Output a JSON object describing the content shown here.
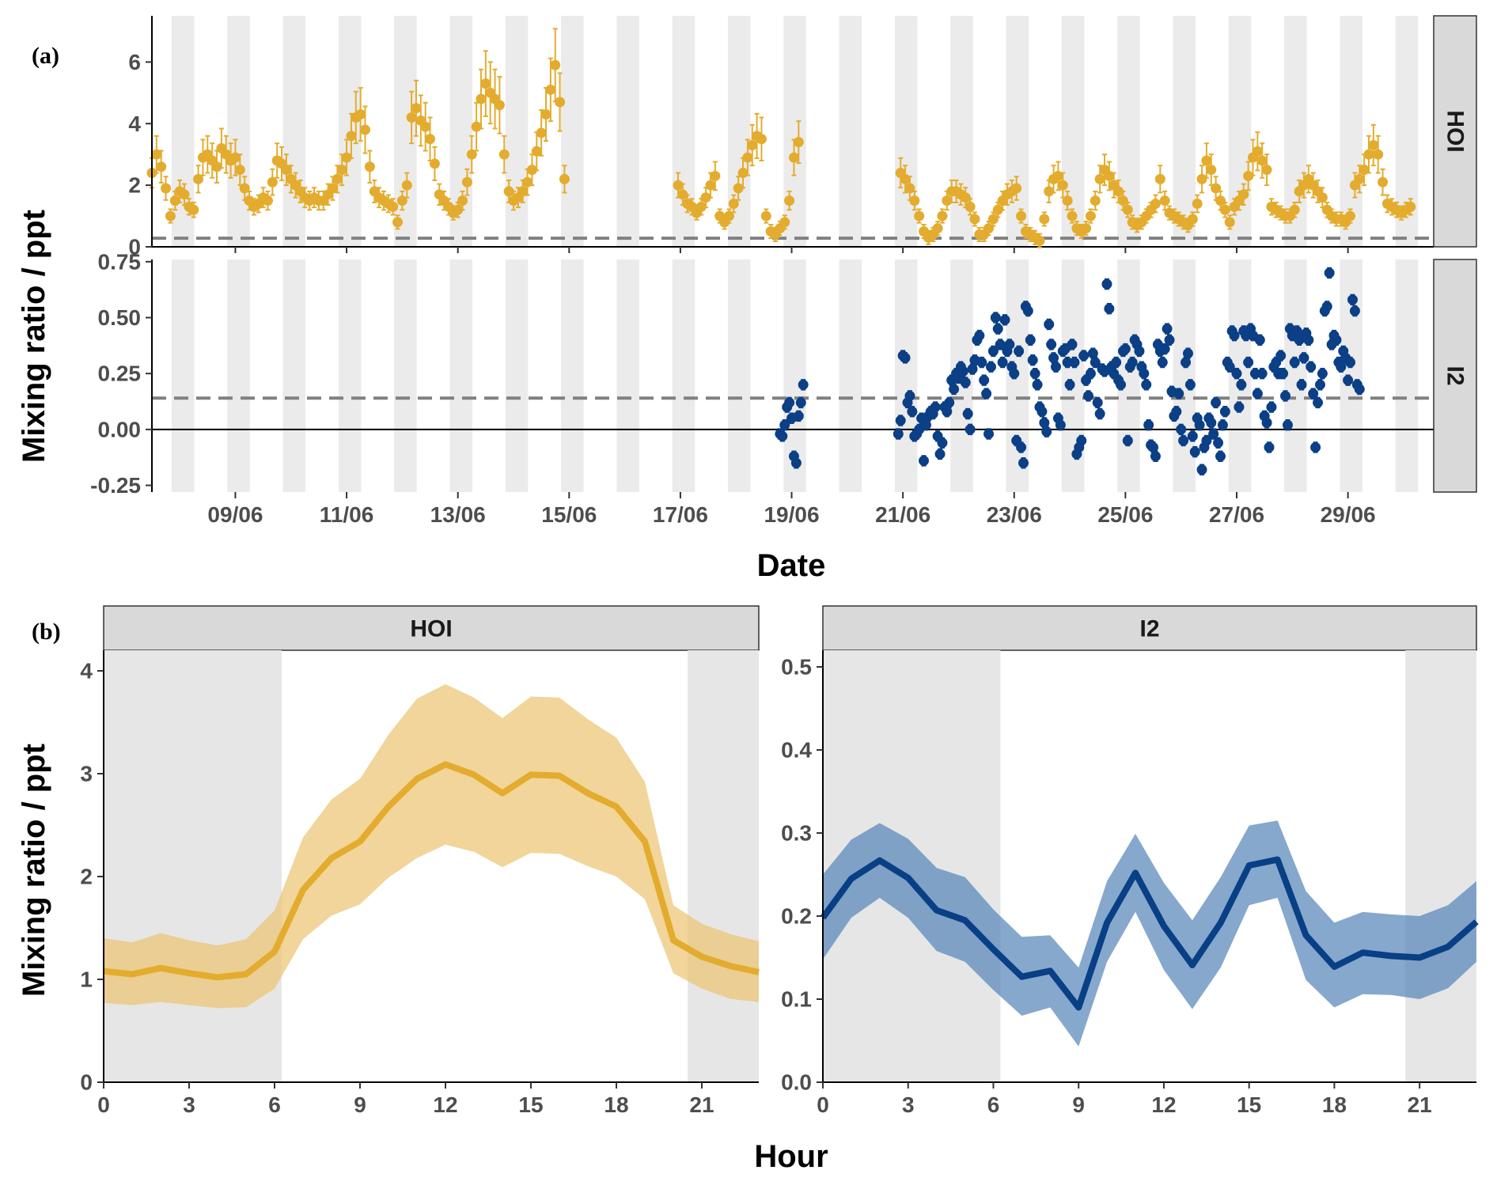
{
  "chart_data": [
    {
      "id": "a",
      "panel_label": "(a)",
      "type": "scatter",
      "xlabel": "Date",
      "ylabel": "Mixing ratio / ppt",
      "x_tick_labels": [
        "09/06",
        "11/06",
        "13/06",
        "15/06",
        "17/06",
        "19/06",
        "21/06",
        "23/06",
        "25/06",
        "27/06",
        "29/06"
      ],
      "x_range": [
        "2023-06-07T12:00",
        "2023-06-30T13:00"
      ],
      "year_assumed": "",
      "night_shading": "light grey vertical bands mark night periods (~20:30 to 06:15 local)",
      "facets": [
        {
          "strip_label": "HOI",
          "color": "#e3ac2e",
          "ylim": [
            0,
            7.5
          ],
          "y_ticks": [
            0,
            2,
            4,
            6
          ],
          "detection_limit": 0.28,
          "zero_line": true,
          "error_bar_relative": 0.2,
          "error_bar_min": 0.22,
          "segments": [
            {
              "start": "2023-06-07T12:00",
              "step_hours": 2,
              "values": [
                2.4,
                3.0,
                2.6,
                1.9,
                1.0,
                1.5,
                1.8,
                1.7,
                1.3,
                1.2,
                2.2,
                2.9,
                3.0,
                2.8,
                2.6,
                3.2,
                3.0,
                2.8,
                2.9,
                2.5,
                1.9,
                1.5,
                1.3,
                1.4,
                1.6,
                1.5,
                2.1,
                2.8,
                2.7,
                2.5,
                2.2,
                2.0,
                1.8,
                1.6,
                1.5,
                1.6,
                1.5,
                1.5,
                1.7,
                1.9,
                2.2,
                2.5,
                2.9,
                3.6,
                4.2,
                4.3,
                3.8,
                2.6,
                1.8,
                1.6,
                1.5,
                1.4,
                1.3,
                0.8,
                1.5,
                2.0,
                4.2,
                4.5,
                4.1,
                3.9,
                3.5,
                2.7,
                1.7,
                1.5,
                1.3,
                1.1,
                1.2,
                1.5,
                2.1,
                3.0,
                3.9,
                4.8,
                5.3,
                5.0,
                4.8,
                4.6,
                3.0,
                1.8,
                1.5,
                1.6,
                1.8,
                2.1,
                2.5,
                3.1,
                3.7,
                4.3,
                5.1,
                5.9,
                4.7,
                2.2
              ]
            },
            {
              "start": "2023-06-16T23:00",
              "step_hours": 2,
              "values": [
                2.0,
                1.7,
                1.4,
                1.3,
                1.1,
                1.3,
                1.6,
                2.0,
                2.3,
                1.0,
                0.8,
                1.0,
                1.4,
                1.9,
                2.4,
                2.9,
                3.3,
                3.6,
                3.5,
                1.0,
                0.5,
                0.4,
                0.6,
                0.8,
                1.5,
                2.9,
                3.4
              ]
            },
            {
              "start": "2023-06-20T23:00",
              "step_hours": 2,
              "values": [
                2.4,
                2.2,
                1.9,
                1.5,
                1.0,
                0.5,
                0.3,
                0.4,
                0.6,
                1.0,
                1.5,
                1.8,
                1.8,
                1.7,
                1.6,
                1.3,
                0.9,
                0.4,
                0.4,
                0.6,
                0.9,
                1.2,
                1.5,
                1.7,
                1.8,
                1.9,
                1.0,
                0.5,
                0.4,
                0.3,
                0.2,
                0.9,
                1.8,
                2.2,
                2.3,
                2.0,
                1.5,
                1.0,
                0.6,
                0.5,
                0.6,
                1.0,
                1.5,
                2.2,
                2.5,
                2.3,
                2.0,
                1.8,
                1.5,
                1.2,
                0.8,
                0.7,
                0.8,
                1.0,
                1.2,
                1.4,
                2.2,
                1.5,
                1.1,
                1.0,
                0.9,
                0.8,
                0.7,
                0.9,
                1.4,
                2.2,
                2.8,
                2.5,
                1.9,
                1.5,
                1.2,
                0.8,
                1.3,
                1.5,
                1.7,
                2.3,
                2.9,
                3.1,
                2.8,
                2.5,
                1.3,
                1.2,
                1.1,
                1.0,
                1.0,
                1.2,
                1.8,
                2.0,
                2.2,
                2.0,
                1.8,
                1.6,
                1.2,
                1.0,
                0.9,
                0.9,
                0.8,
                1.0,
                2.0,
                2.2,
                2.5,
                3.0,
                3.3,
                3.0,
                2.1,
                1.4,
                1.3,
                1.2,
                1.1,
                1.2,
                1.3
              ]
            }
          ]
        },
        {
          "strip_label": "I2",
          "color": "#0b3f86",
          "ylim": [
            -0.28,
            0.76
          ],
          "y_ticks": [
            -0.25,
            0,
            0.25,
            0.5,
            0.75
          ],
          "y_tick_labels": [
            "-0.25",
            "0.00",
            "0.25",
            "0.50",
            "0.75"
          ],
          "detection_limit": 0.14,
          "zero_line": true,
          "error_bar_half": 0.022,
          "segments": [
            {
              "start": "2023-06-18T19:00",
              "step_hours": 1,
              "values": [
                -0.02,
                -0.03,
                0.02,
                0.1,
                0.12,
                0.05,
                -0.12,
                -0.15,
                0.06,
                0.12,
                0.2
              ]
            },
            {
              "start": "2023-06-20T22:00",
              "step_hours": 1,
              "values": [
                -0.02,
                0.04,
                0.33,
                0.32,
                0.12,
                0.15,
                0.08,
                -0.03,
                -0.02,
                0.0,
                0.05,
                -0.14,
                0.02,
                0.06,
                0.08,
                0.07,
                0.1,
                -0.03,
                -0.11,
                -0.06,
                0.1,
                0.08,
                0.12,
                0.22,
                0.18,
                0.25,
                0.23,
                0.28,
                0.26,
                0.21,
                0.07,
                0.0,
                0.27,
                0.31,
                0.4,
                0.42,
                0.3,
                0.22,
                0.16,
                -0.02,
                0.28,
                0.35,
                0.5,
                0.45,
                0.38,
                0.3,
                0.49,
                0.35,
                0.38,
                0.28,
                0.25,
                -0.05,
                0.35,
                -0.08,
                -0.15,
                0.55,
                0.53,
                0.4,
                0.31,
                0.25,
                0.2,
                0.1,
                0.08,
                0.03,
                -0.01,
                0.47,
                0.38,
                0.32,
                0.28,
                0.05,
                0.02,
                0.35,
                0.36,
                0.3,
                0.2,
                0.38,
                0.3,
                -0.11,
                -0.08,
                -0.05,
                0.33,
                0.22,
                0.15,
                0.25,
                0.34,
                0.3,
                0.12,
                0.07,
                0.27,
                0.26,
                0.65,
                0.54,
                0.28,
                0.25,
                0.3,
                0.22,
                0.2,
                0.35,
                0.36,
                -0.05,
                0.28,
                0.3,
                0.4,
                0.38,
                0.35,
                0.28,
                0.25,
                0.2,
                0.02,
                -0.07,
                -0.08,
                -0.12,
                0.38,
                0.35,
                0.3,
                0.36,
                0.45,
                0.4,
                0.17,
                0.06,
                0.08,
                0.16,
                0.0,
                -0.05,
                0.3,
                0.34,
                0.2,
                -0.03,
                -0.1,
                0.05,
                0.02,
                -0.18,
                -0.08,
                -0.05,
                0.05,
                0.03,
                -0.02,
                0.12,
                -0.06,
                -0.12,
                0.02,
                0.08,
                0.3,
                0.28,
                0.44,
                0.42,
                0.25,
                0.1,
                0.2,
                0.44,
                0.42,
                0.3,
                0.45,
                0.42,
                0.25,
                0.16,
                0.4,
                0.25,
                0.06,
                0.03,
                -0.08,
                0.1,
                0.28,
                0.3,
                0.25,
                0.33,
                0.25,
                0.15,
                0.02,
                0.45,
                0.42,
                0.3,
                0.44,
                0.4,
                0.2,
                0.32,
                0.43,
                0.4,
                0.28,
                0.16,
                -0.08,
                0.12,
                0.2,
                0.25,
                0.53,
                0.55,
                0.7,
                0.38,
                0.42,
                0.4,
                0.3,
                0.28,
                0.35,
                0.32,
                0.22,
                0.3,
                0.58,
                0.53,
                0.2,
                0.18
              ]
            }
          ]
        }
      ]
    },
    {
      "id": "b",
      "panel_label": "(b)",
      "type": "line",
      "xlabel": "Hour",
      "ylabel": "Mixing ratio / ppt",
      "x": [
        0,
        1,
        2,
        3,
        4,
        5,
        6,
        7,
        8,
        9,
        10,
        11,
        12,
        13,
        14,
        15,
        16,
        17,
        18,
        19,
        20,
        21,
        22,
        23
      ],
      "x_ticks": [
        0,
        3,
        6,
        9,
        12,
        15,
        18,
        21
      ],
      "night_shading": [
        [
          0,
          6.25
        ],
        [
          20.5,
          23
        ]
      ],
      "facets": [
        {
          "strip_label": "HOI",
          "color": "#e3ac2e",
          "band_color": "#ebc36f",
          "ylim": [
            0,
            4.2
          ],
          "y_ticks": [
            0,
            1,
            2,
            3,
            4
          ],
          "y_tick_labels": [
            "0",
            "1",
            "2",
            "3",
            "4"
          ],
          "mean": [
            1.08,
            1.05,
            1.11,
            1.06,
            1.02,
            1.05,
            1.27,
            1.87,
            2.18,
            2.34,
            2.68,
            2.95,
            3.09,
            2.99,
            2.81,
            2.99,
            2.98,
            2.81,
            2.68,
            2.34,
            1.38,
            1.22,
            1.13,
            1.07
          ],
          "upper": [
            1.4,
            1.36,
            1.45,
            1.38,
            1.33,
            1.39,
            1.67,
            2.38,
            2.75,
            2.95,
            3.38,
            3.73,
            3.87,
            3.74,
            3.54,
            3.75,
            3.74,
            3.53,
            3.35,
            2.92,
            1.72,
            1.54,
            1.44,
            1.37
          ],
          "lower": [
            0.77,
            0.75,
            0.78,
            0.75,
            0.72,
            0.73,
            0.91,
            1.39,
            1.62,
            1.73,
            1.99,
            2.18,
            2.31,
            2.24,
            2.09,
            2.23,
            2.22,
            2.1,
            2.0,
            1.78,
            1.06,
            0.91,
            0.81,
            0.78
          ]
        },
        {
          "strip_label": "I2",
          "color": "#083f85",
          "band_color": "#5283b8",
          "ylim": [
            0,
            0.52
          ],
          "y_ticks": [
            0,
            0.1,
            0.2,
            0.3,
            0.4,
            0.5
          ],
          "y_tick_labels": [
            "0.0",
            "0.1",
            "0.2",
            "0.3",
            "0.4",
            "0.5"
          ],
          "mean": [
            0.198,
            0.245,
            0.267,
            0.246,
            0.207,
            0.195,
            0.16,
            0.127,
            0.134,
            0.09,
            0.192,
            0.252,
            0.188,
            0.141,
            0.192,
            0.261,
            0.268,
            0.177,
            0.139,
            0.156,
            0.152,
            0.15,
            0.163,
            0.193
          ],
          "upper": [
            0.25,
            0.292,
            0.312,
            0.293,
            0.258,
            0.247,
            0.208,
            0.175,
            0.177,
            0.138,
            0.242,
            0.299,
            0.24,
            0.195,
            0.247,
            0.309,
            0.315,
            0.23,
            0.192,
            0.205,
            0.202,
            0.2,
            0.213,
            0.242
          ],
          "lower": [
            0.148,
            0.198,
            0.222,
            0.198,
            0.158,
            0.145,
            0.111,
            0.08,
            0.09,
            0.043,
            0.145,
            0.205,
            0.135,
            0.088,
            0.138,
            0.213,
            0.222,
            0.123,
            0.09,
            0.106,
            0.105,
            0.1,
            0.113,
            0.145
          ]
        }
      ]
    }
  ]
}
